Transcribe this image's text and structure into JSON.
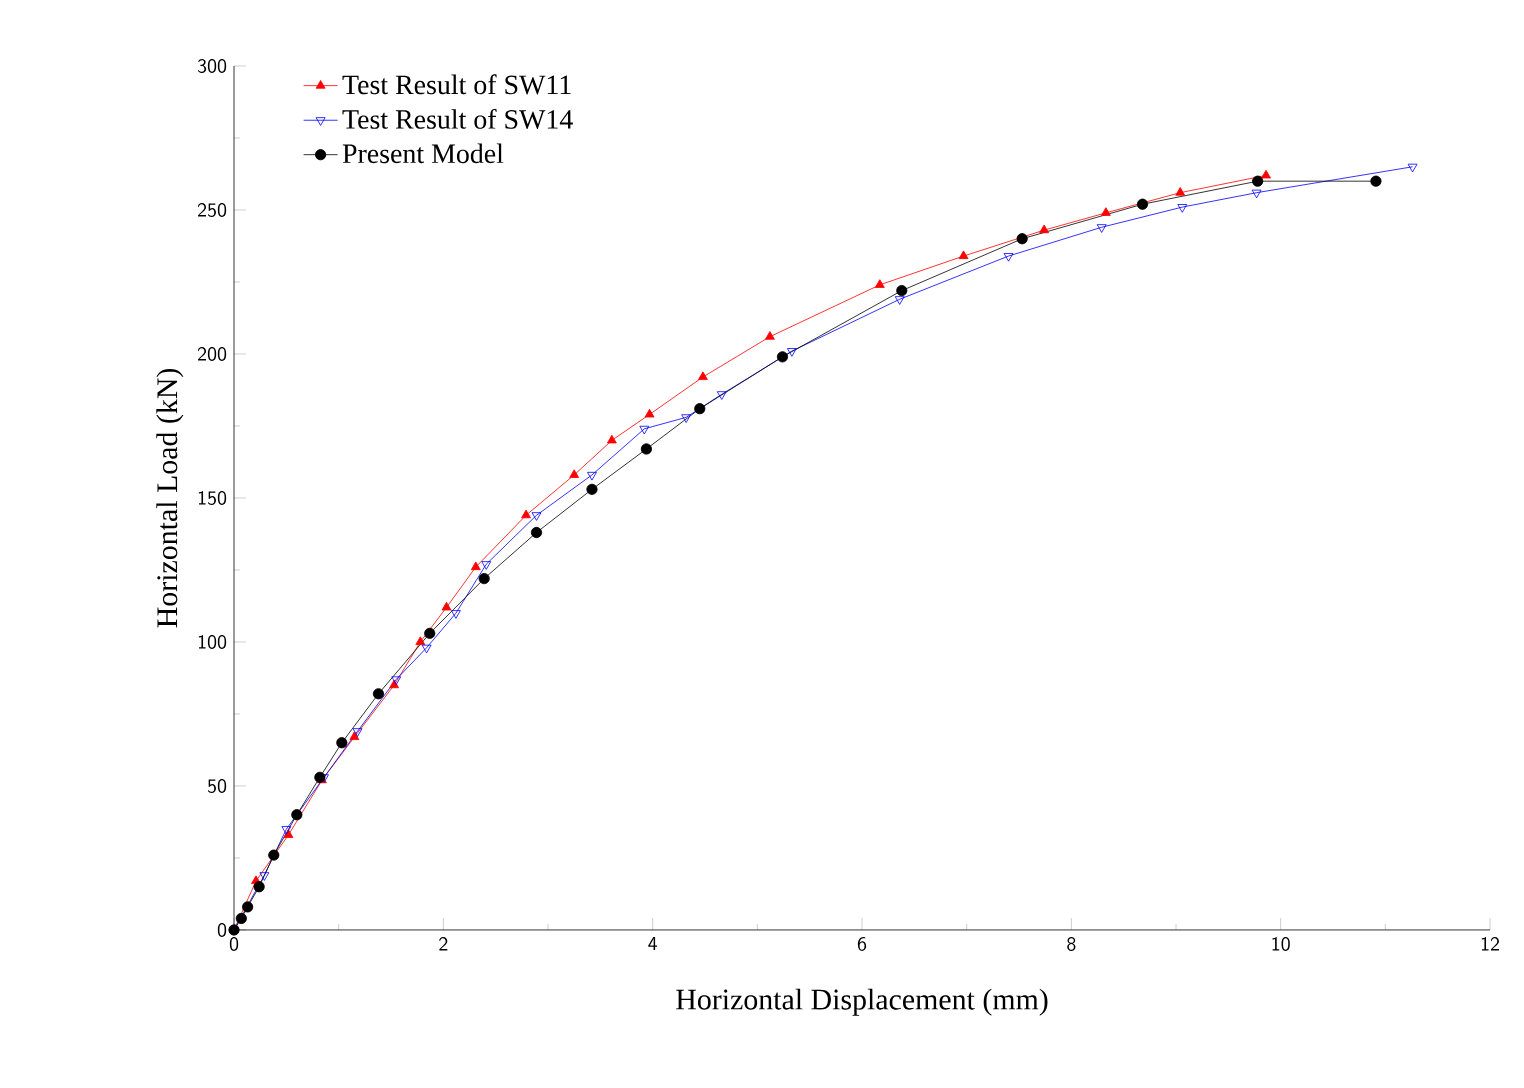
{
  "chart_data": {
    "type": "line",
    "xlabel": "Horizontal Displacement (mm)",
    "ylabel": "Horizontal Load (kN)",
    "xlim": [
      0,
      12
    ],
    "ylim": [
      0,
      300
    ],
    "xticks": [
      0,
      2,
      4,
      6,
      8,
      10,
      12
    ],
    "yticks": [
      0,
      50,
      100,
      150,
      200,
      250,
      300
    ],
    "grid": false,
    "legend": "top left",
    "line_style": "solid",
    "series": [
      {
        "name": "Test Result of SW11",
        "color": "#ff0000",
        "marker": "triangle",
        "x": [
          0,
          0.21,
          0.52,
          0.84,
          1.15,
          1.53,
          1.78,
          2.03,
          2.31,
          2.79,
          3.25,
          3.61,
          3.97,
          4.48,
          5.12,
          6.17,
          6.97,
          7.74,
          8.33,
          9.04,
          9.86
        ],
        "values": [
          0,
          17,
          33,
          52,
          67,
          85,
          100,
          112,
          126,
          144,
          158,
          170,
          179,
          192,
          206,
          224,
          234,
          243,
          249,
          256,
          262
        ]
      },
      {
        "name": "Test Result of SW14",
        "color": "#0000ff",
        "marker": "triangle down open",
        "x": [
          0,
          0.29,
          0.5,
          0.86,
          1.18,
          1.55,
          1.84,
          2.12,
          2.41,
          2.89,
          3.42,
          3.92,
          4.32,
          4.66,
          5.33,
          6.36,
          7.4,
          8.29,
          9.06,
          9.77,
          11.26
        ],
        "values": [
          0,
          19,
          35,
          53,
          69,
          87,
          98,
          110,
          127,
          144,
          158,
          174,
          178,
          186,
          201,
          219,
          234,
          244,
          251,
          256,
          265
        ]
      },
      {
        "name": "Present Model",
        "color": "#000000",
        "marker": "circle",
        "x": [
          0,
          0.07,
          0.13,
          0.24,
          0.38,
          0.6,
          0.82,
          1.03,
          1.38,
          1.87,
          2.39,
          2.89,
          3.42,
          3.94,
          4.45,
          5.24,
          6.38,
          7.53,
          8.68,
          9.78,
          10.91
        ],
        "values": [
          0,
          4,
          8,
          15,
          26,
          40,
          53,
          65,
          82,
          103,
          122,
          138,
          153,
          167,
          181,
          199,
          222,
          240,
          252,
          260,
          260
        ]
      }
    ]
  }
}
